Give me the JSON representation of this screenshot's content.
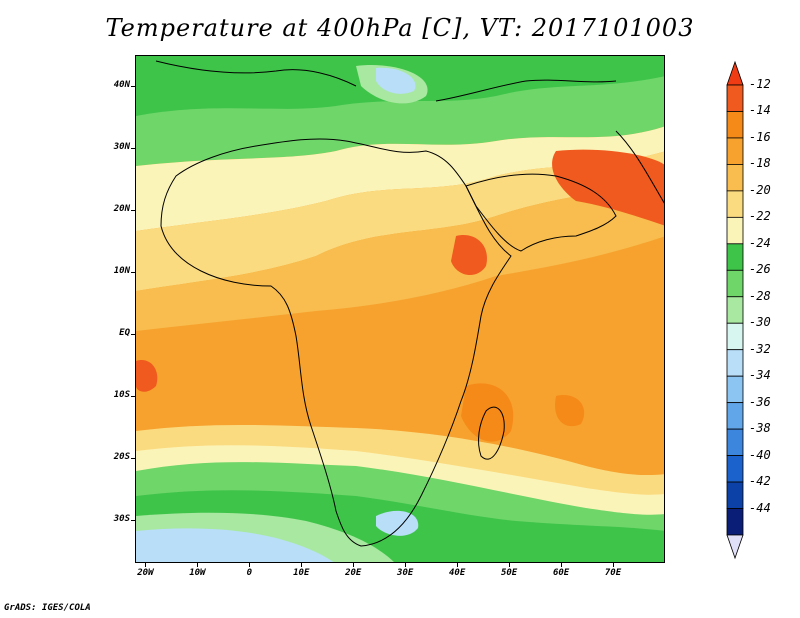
{
  "title": "Temperature at 400hPa [C], VT: 2017101003",
  "footer": "GrADS: IGES/COLA",
  "map": {
    "lon_range": [
      -22,
      80
    ],
    "lat_range": [
      -37,
      45
    ],
    "lat_ticks": [
      {
        "value": 40,
        "label": "40N"
      },
      {
        "value": 30,
        "label": "30N"
      },
      {
        "value": 20,
        "label": "20N"
      },
      {
        "value": 10,
        "label": "10N"
      },
      {
        "value": 0,
        "label": "EQ"
      },
      {
        "value": -10,
        "label": "10S"
      },
      {
        "value": -20,
        "label": "20S"
      },
      {
        "value": -30,
        "label": "30S"
      }
    ],
    "lon_ticks": [
      {
        "value": -20,
        "label": "20W"
      },
      {
        "value": -10,
        "label": "10W"
      },
      {
        "value": 0,
        "label": "0"
      },
      {
        "value": 10,
        "label": "10E"
      },
      {
        "value": 20,
        "label": "20E"
      },
      {
        "value": 30,
        "label": "30E"
      },
      {
        "value": 40,
        "label": "40E"
      },
      {
        "value": 50,
        "label": "50E"
      },
      {
        "value": 60,
        "label": "60E"
      },
      {
        "value": 70,
        "label": "70E"
      }
    ]
  },
  "colorbar": {
    "labels": [
      "-12",
      "-14",
      "-16",
      "-18",
      "-20",
      "-22",
      "-24",
      "-26",
      "-28",
      "-30",
      "-32",
      "-34",
      "-36",
      "-38",
      "-40",
      "-42",
      "-44"
    ],
    "colors": [
      "#f05a1e",
      "#f58a18",
      "#f7a22e",
      "#f8bd4e",
      "#fbdb80",
      "#fbf4b8",
      "#3fc44a",
      "#6fd66a",
      "#a8e8a0",
      "#d8f6f0",
      "#b8def8",
      "#8cc4f2",
      "#62a6ea",
      "#3c86de",
      "#1c62cc",
      "#0c42a8",
      "#0a1e78"
    ],
    "top_arrow_color": "#f03c14",
    "bottom_arrow_color": "#e0e0f8"
  }
}
